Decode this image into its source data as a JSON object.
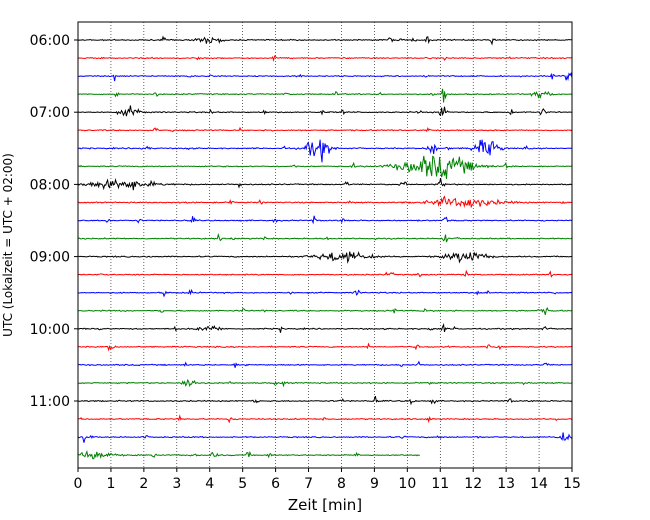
{
  "chart_data": {
    "type": "line",
    "title": "",
    "xlabel": "Zeit  [min]",
    "ylabel": "UTC (Lokalzeit = UTC + 02:00)",
    "xlim": [
      0,
      15
    ],
    "x_ticks": [
      "0",
      "1",
      "2",
      "3",
      "4",
      "5",
      "6",
      "7",
      "8",
      "9",
      "10",
      "11",
      "12",
      "13",
      "14",
      "15"
    ],
    "y_ticks": [
      "06:00",
      "07:00",
      "08:00",
      "09:00",
      "10:00",
      "11:00"
    ],
    "grid": "vertical-dotted",
    "trace_colors": [
      "#000000",
      "#ff0000",
      "#0000ff",
      "#008000"
    ],
    "traces": [
      {
        "start": "06:00",
        "end_min": 15
      },
      {
        "start": "06:15",
        "end_min": 15
      },
      {
        "start": "06:30",
        "end_min": 15
      },
      {
        "start": "06:45",
        "end_min": 15
      },
      {
        "start": "07:00",
        "end_min": 15
      },
      {
        "start": "07:15",
        "end_min": 15
      },
      {
        "start": "07:30",
        "end_min": 15
      },
      {
        "start": "07:45",
        "end_min": 15
      },
      {
        "start": "08:00",
        "end_min": 15
      },
      {
        "start": "08:15",
        "end_min": 15
      },
      {
        "start": "08:30",
        "end_min": 15
      },
      {
        "start": "08:45",
        "end_min": 15
      },
      {
        "start": "09:00",
        "end_min": 15
      },
      {
        "start": "09:15",
        "end_min": 15
      },
      {
        "start": "09:30",
        "end_min": 15
      },
      {
        "start": "09:45",
        "end_min": 15
      },
      {
        "start": "10:00",
        "end_min": 15
      },
      {
        "start": "10:15",
        "end_min": 15
      },
      {
        "start": "10:30",
        "end_min": 15
      },
      {
        "start": "10:45",
        "end_min": 15
      },
      {
        "start": "11:00",
        "end_min": 15
      },
      {
        "start": "11:15",
        "end_min": 15
      },
      {
        "start": "11:30",
        "end_min": 15
      },
      {
        "start": "11:45",
        "end_min": 10.4
      }
    ],
    "events": [
      {
        "trace": 6,
        "x": 7.3,
        "amp": 2.2,
        "width": 0.35
      },
      {
        "trace": 6,
        "x": 12.4,
        "amp": 2.0,
        "width": 0.35
      },
      {
        "trace": 7,
        "x": 10.9,
        "amp": 2.5,
        "width": 1.0
      },
      {
        "trace": 6,
        "x": 10.75,
        "amp": 2.0,
        "width": 0.12
      },
      {
        "trace": 4,
        "x": 11.1,
        "amp": 2.6,
        "width": 0.1
      },
      {
        "trace": 3,
        "x": 11.1,
        "amp": 3.0,
        "width": 0.06
      },
      {
        "trace": 8,
        "x": 11.05,
        "amp": 1.4,
        "width": 0.1
      },
      {
        "trace": 9,
        "x": 11.1,
        "amp": 1.2,
        "width": 0.08
      },
      {
        "trace": 10,
        "x": 11.15,
        "amp": 1.2,
        "width": 0.06
      },
      {
        "trace": 11,
        "x": 11.15,
        "amp": 1.3,
        "width": 0.06
      },
      {
        "trace": 8,
        "x": 1.3,
        "amp": 0.9,
        "width": 1.0
      },
      {
        "trace": 12,
        "x": 8.0,
        "amp": 1.0,
        "width": 0.8
      },
      {
        "trace": 12,
        "x": 11.8,
        "amp": 1.0,
        "width": 0.6
      },
      {
        "trace": 9,
        "x": 11.8,
        "amp": 0.9,
        "width": 1.0
      },
      {
        "trace": 4,
        "x": 1.6,
        "amp": 1.0,
        "width": 0.3
      },
      {
        "trace": 3,
        "x": 14.1,
        "amp": 0.8,
        "width": 0.25
      },
      {
        "trace": 0,
        "x": 4.0,
        "amp": 0.8,
        "width": 0.35
      },
      {
        "trace": 16,
        "x": 4.0,
        "amp": 0.7,
        "width": 0.3
      },
      {
        "trace": 17,
        "x": 1.0,
        "amp": 1.1,
        "width": 0.08
      },
      {
        "trace": 19,
        "x": 3.4,
        "amp": 1.0,
        "width": 0.2
      },
      {
        "trace": 23,
        "x": 0.5,
        "amp": 0.9,
        "width": 0.5
      },
      {
        "trace": 23,
        "x": 3.5,
        "amp": 1.1,
        "width": 0.06
      },
      {
        "trace": 22,
        "x": 14.8,
        "amp": 0.9,
        "width": 0.2
      },
      {
        "trace": 2,
        "x": 14.9,
        "amp": 1.0,
        "width": 0.12
      },
      {
        "trace": 0,
        "x": 12.6,
        "amp": 1.1,
        "width": 0.06
      },
      {
        "trace": 4,
        "x": 14.1,
        "amp": 0.9,
        "width": 0.08
      },
      {
        "trace": 15,
        "x": 14.2,
        "amp": 0.8,
        "width": 0.08
      },
      {
        "trace": 20,
        "x": 10.1,
        "amp": 0.9,
        "width": 0.08
      },
      {
        "trace": 16,
        "x": 11.1,
        "amp": 0.9,
        "width": 0.06
      },
      {
        "trace": 14,
        "x": 8.5,
        "amp": 0.7,
        "width": 0.08
      }
    ]
  }
}
